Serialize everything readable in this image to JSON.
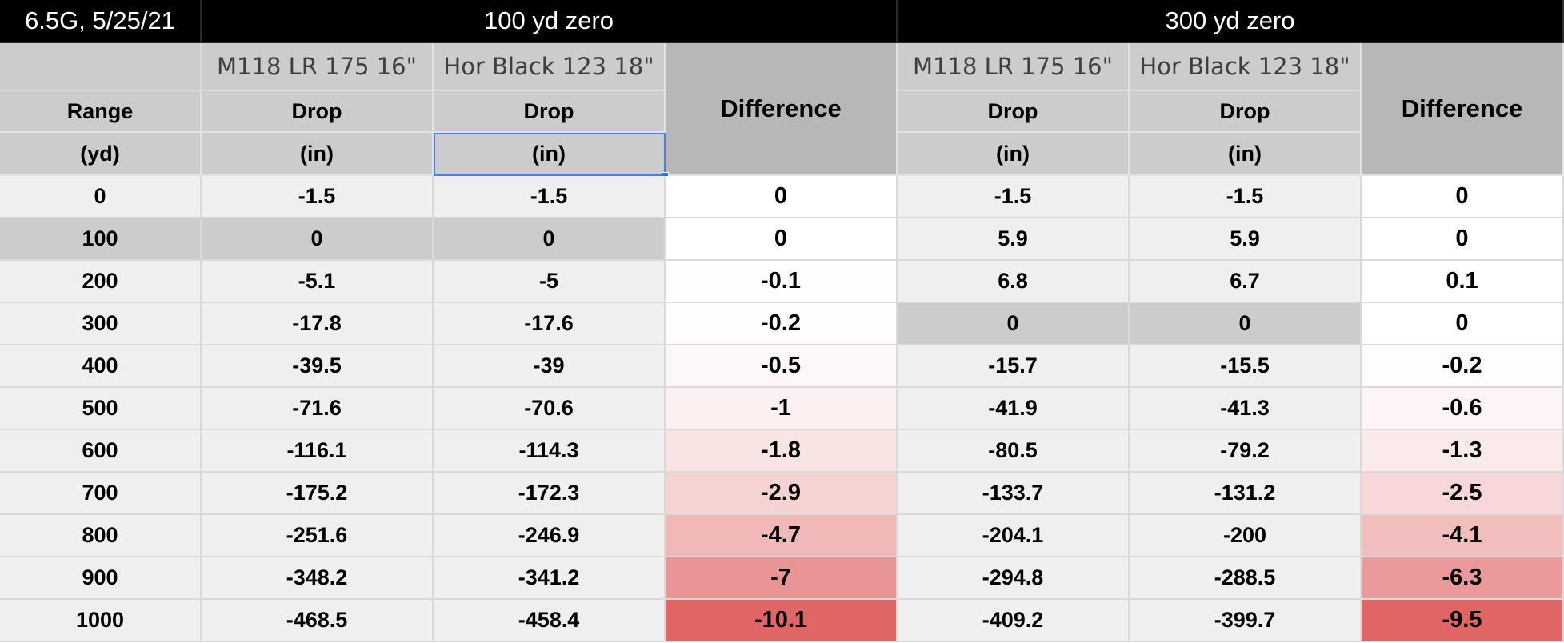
{
  "sheet": {
    "title": "6.5G, 5/25/21",
    "groups": [
      {
        "label": "100 yd zero",
        "loads": [
          "M118 LR 175 16\"",
          "Hor Black 123 18\""
        ]
      },
      {
        "label": "300 yd zero",
        "loads": [
          "M118 LR 175 16\"",
          "Hor Black 123 18\""
        ]
      }
    ],
    "range_header": "Range",
    "range_unit": "(yd)",
    "drop_header": "Drop",
    "drop_unit": "(in)",
    "difference_header": "Difference",
    "rows": [
      [
        "0",
        "-1.5",
        "-1.5",
        "0",
        "-1.5",
        "-1.5",
        "0"
      ],
      [
        "100",
        "0",
        "0",
        "0",
        "5.9",
        "5.9",
        "0"
      ],
      [
        "200",
        "-5.1",
        "-5",
        "-0.1",
        "6.8",
        "6.7",
        "0.1"
      ],
      [
        "300",
        "-17.8",
        "-17.6",
        "-0.2",
        "0",
        "0",
        "0"
      ],
      [
        "400",
        "-39.5",
        "-39",
        "-0.5",
        "-15.7",
        "-15.5",
        "-0.2"
      ],
      [
        "500",
        "-71.6",
        "-70.6",
        "-1",
        "-41.9",
        "-41.3",
        "-0.6"
      ],
      [
        "600",
        "-116.1",
        "-114.3",
        "-1.8",
        "-80.5",
        "-79.2",
        "-1.3"
      ],
      [
        "700",
        "-175.2",
        "-172.3",
        "-2.9",
        "-133.7",
        "-131.2",
        "-2.5"
      ],
      [
        "800",
        "-251.6",
        "-246.9",
        "-4.7",
        "-204.1",
        "-200",
        "-4.1"
      ],
      [
        "900",
        "-348.2",
        "-341.2",
        "-7",
        "-294.8",
        "-288.5",
        "-6.3"
      ],
      [
        "1000",
        "-468.5",
        "-458.4",
        "-10.1",
        "-409.2",
        "-399.7",
        "-9.5"
      ]
    ],
    "zero_rows": {
      "group1": 1,
      "group2": 3
    },
    "selected_cell": {
      "row": "unit",
      "col": 2
    },
    "colors": {
      "title_bg": "#000000",
      "header_bg": "#cccccc",
      "difference_header_bg": "#b7b7b7",
      "data_bg": "#efefef",
      "heat_low": "#ffffff",
      "heat_high": "#e06666",
      "selection": "#4a7fe0"
    }
  }
}
